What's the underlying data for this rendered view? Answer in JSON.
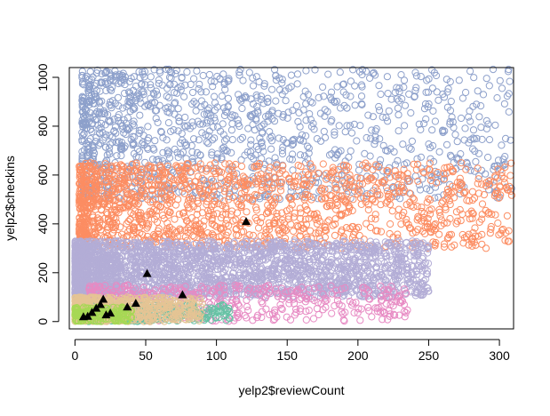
{
  "chart_data": {
    "type": "scatter",
    "title": "",
    "xlabel": "yelp2$reviewCount",
    "ylabel": "yelp2$checkins",
    "xlim": [
      -4,
      310
    ],
    "ylim": [
      -30,
      1040
    ],
    "xticks": [
      0,
      50,
      100,
      150,
      200,
      250,
      300
    ],
    "yticks": [
      0,
      200,
      400,
      600,
      800,
      1000
    ],
    "xtick_labels": [
      "0",
      "50",
      "100",
      "150",
      "200",
      "250",
      "300"
    ],
    "ytick_labels": [
      "0",
      "200",
      "400",
      "600",
      "800",
      "1000"
    ],
    "grid": false,
    "legend": "none",
    "marker": "open-circle",
    "clusters": [
      {
        "color": "#8DA0CB",
        "checkins_range": [
          500,
          1040
        ],
        "reviewCount_range": [
          5,
          310
        ],
        "approx_points": 1300
      },
      {
        "color": "#FC8D62",
        "checkins_range": [
          300,
          650
        ],
        "reviewCount_range": [
          3,
          310
        ],
        "approx_points": 1500
      },
      {
        "color": "#B3ADD6",
        "checkins_range": [
          100,
          330
        ],
        "reviewCount_range": [
          0,
          250
        ],
        "approx_points": 2500
      },
      {
        "color": "#E78AC3",
        "checkins_range": [
          0,
          150
        ],
        "reviewCount_range": [
          10,
          235
        ],
        "approx_points": 500
      },
      {
        "color": "#66C2A5",
        "checkins_range": [
          0,
          70
        ],
        "reviewCount_range": [
          5,
          110
        ],
        "approx_points": 400
      },
      {
        "color": "#E5C494",
        "checkins_range": [
          0,
          100
        ],
        "reviewCount_range": [
          0,
          90
        ],
        "approx_points": 600
      },
      {
        "color": "#A6D854",
        "checkins_range": [
          0,
          60
        ],
        "reviewCount_range": [
          0,
          40
        ],
        "approx_points": 150
      }
    ],
    "centers": {
      "marker": "filled-triangle",
      "color": "#000000",
      "points": [
        {
          "x": 121,
          "y": 410
        },
        {
          "x": 51,
          "y": 197
        },
        {
          "x": 76,
          "y": 110
        },
        {
          "x": 43,
          "y": 75
        },
        {
          "x": 37,
          "y": 60
        },
        {
          "x": 20,
          "y": 92
        },
        {
          "x": 18,
          "y": 70
        },
        {
          "x": 15,
          "y": 55
        },
        {
          "x": 12,
          "y": 38
        },
        {
          "x": 9,
          "y": 22
        },
        {
          "x": 6,
          "y": 20
        },
        {
          "x": 22,
          "y": 28
        },
        {
          "x": 25,
          "y": 35
        }
      ]
    }
  }
}
